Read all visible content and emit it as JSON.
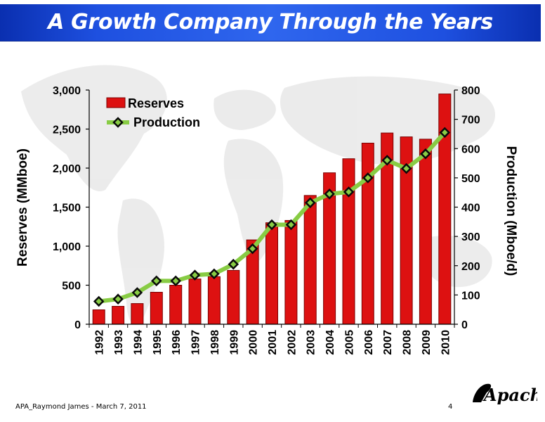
{
  "header": {
    "title": "A Growth Company Through the Years"
  },
  "footer": {
    "text": "APA_Raymond James - March 7, 2011",
    "page": "4"
  },
  "logo": {
    "text": "Apache"
  },
  "colors": {
    "banner": "#1e50e0",
    "bars": "#dd1111",
    "line": "#88cc44",
    "marker": "#0a0a0a"
  },
  "chart_data": {
    "type": "bar",
    "categories": [
      "1992",
      "1993",
      "1994",
      "1995",
      "1996",
      "1997",
      "1998",
      "1999",
      "2000",
      "2001",
      "2002",
      "2003",
      "2004",
      "2005",
      "2006",
      "2007",
      "2008",
      "2009",
      "2010"
    ],
    "series": [
      {
        "name": "Reserves",
        "type": "bar",
        "axis": "left",
        "values": [
          185,
          230,
          265,
          410,
          500,
          580,
          610,
          690,
          1080,
          1300,
          1330,
          1650,
          1940,
          2120,
          2320,
          2450,
          2400,
          2370,
          2950
        ]
      },
      {
        "name": "Production",
        "type": "line",
        "axis": "right",
        "values": [
          78,
          86,
          108,
          148,
          148,
          168,
          172,
          205,
          258,
          340,
          340,
          415,
          445,
          452,
          500,
          560,
          532,
          582,
          655
        ]
      }
    ],
    "ylabel": "Reserves (MMboe)",
    "ylabel_right": "Production (Mboe/d)",
    "ylim": [
      0,
      3000
    ],
    "ylim_right": [
      0,
      800
    ],
    "yticks": [
      0,
      500,
      1000,
      1500,
      2000,
      2500,
      3000
    ],
    "yticks_labels": [
      "0",
      "500",
      "1,000",
      "1,500",
      "2,000",
      "2,500",
      "3,000"
    ],
    "yticks_right": [
      0,
      100,
      200,
      300,
      400,
      500,
      600,
      700,
      800
    ],
    "legend": "top-left",
    "grid": false
  }
}
